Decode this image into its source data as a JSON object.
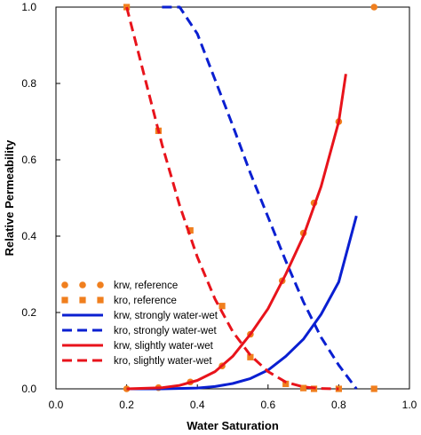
{
  "chart_data": {
    "type": "line",
    "xlabel": "Water Saturation",
    "ylabel": "Relative Permeability",
    "xlim": [
      0.0,
      1.0
    ],
    "ylim": [
      0.0,
      1.0
    ],
    "xticks": [
      "0.0",
      "0.2",
      "0.4",
      "0.6",
      "0.8",
      "1.0"
    ],
    "yticks": [
      "0.0",
      "0.2",
      "0.4",
      "0.6",
      "0.8",
      "1.0"
    ],
    "grid": false,
    "legend_position": "bottom-left",
    "series": [
      {
        "name": "krw, reference",
        "style": "markers",
        "marker": "circle",
        "color": "#f07f1e",
        "x": [
          0.2,
          0.29,
          0.38,
          0.47,
          0.55,
          0.64,
          0.7,
          0.73,
          0.8,
          0.9
        ],
        "y": [
          0.0,
          0.003,
          0.018,
          0.06,
          0.143,
          0.283,
          0.408,
          0.487,
          0.7,
          1.0
        ]
      },
      {
        "name": "kro, reference",
        "style": "markers",
        "marker": "square",
        "color": "#f07f1e",
        "x": [
          0.2,
          0.29,
          0.38,
          0.47,
          0.55,
          0.65,
          0.7,
          0.73,
          0.8,
          0.9
        ],
        "y": [
          1.0,
          0.676,
          0.415,
          0.217,
          0.083,
          0.013,
          0.002,
          0.0,
          0.0,
          0.0
        ]
      },
      {
        "name": "krw, strongly water-wet",
        "style": "solid",
        "color": "#0a1fd1",
        "x": [
          0.2,
          0.3,
          0.4,
          0.45,
          0.5,
          0.55,
          0.6,
          0.65,
          0.7,
          0.75,
          0.8,
          0.85
        ],
        "y": [
          0.0,
          0.0,
          0.002,
          0.006,
          0.014,
          0.027,
          0.049,
          0.085,
          0.13,
          0.195,
          0.28,
          0.453
        ]
      },
      {
        "name": "kro, strongly water-wet",
        "style": "dashed",
        "color": "#0a1fd1",
        "x": [
          0.3,
          0.35,
          0.4,
          0.45,
          0.5,
          0.55,
          0.6,
          0.65,
          0.7,
          0.75,
          0.8,
          0.85
        ],
        "y": [
          1.0,
          1.0,
          0.93,
          0.81,
          0.69,
          0.565,
          0.45,
          0.335,
          0.228,
          0.135,
          0.062,
          0.0
        ]
      },
      {
        "name": "krw, slightly water-wet",
        "style": "solid",
        "color": "#e8131b",
        "x": [
          0.2,
          0.3,
          0.35,
          0.4,
          0.45,
          0.5,
          0.55,
          0.6,
          0.65,
          0.7,
          0.75,
          0.8,
          0.82
        ],
        "y": [
          0.0,
          0.003,
          0.009,
          0.022,
          0.045,
          0.085,
          0.143,
          0.21,
          0.3,
          0.4,
          0.53,
          0.7,
          0.825
        ]
      },
      {
        "name": "kro, slightly water-wet",
        "style": "dashed",
        "color": "#e8131b",
        "x": [
          0.2,
          0.25,
          0.3,
          0.35,
          0.4,
          0.45,
          0.5,
          0.55,
          0.6,
          0.65,
          0.7,
          0.75,
          0.8
        ],
        "y": [
          1.0,
          0.82,
          0.64,
          0.48,
          0.345,
          0.235,
          0.15,
          0.088,
          0.045,
          0.018,
          0.005,
          0.001,
          0.0
        ]
      }
    ]
  }
}
